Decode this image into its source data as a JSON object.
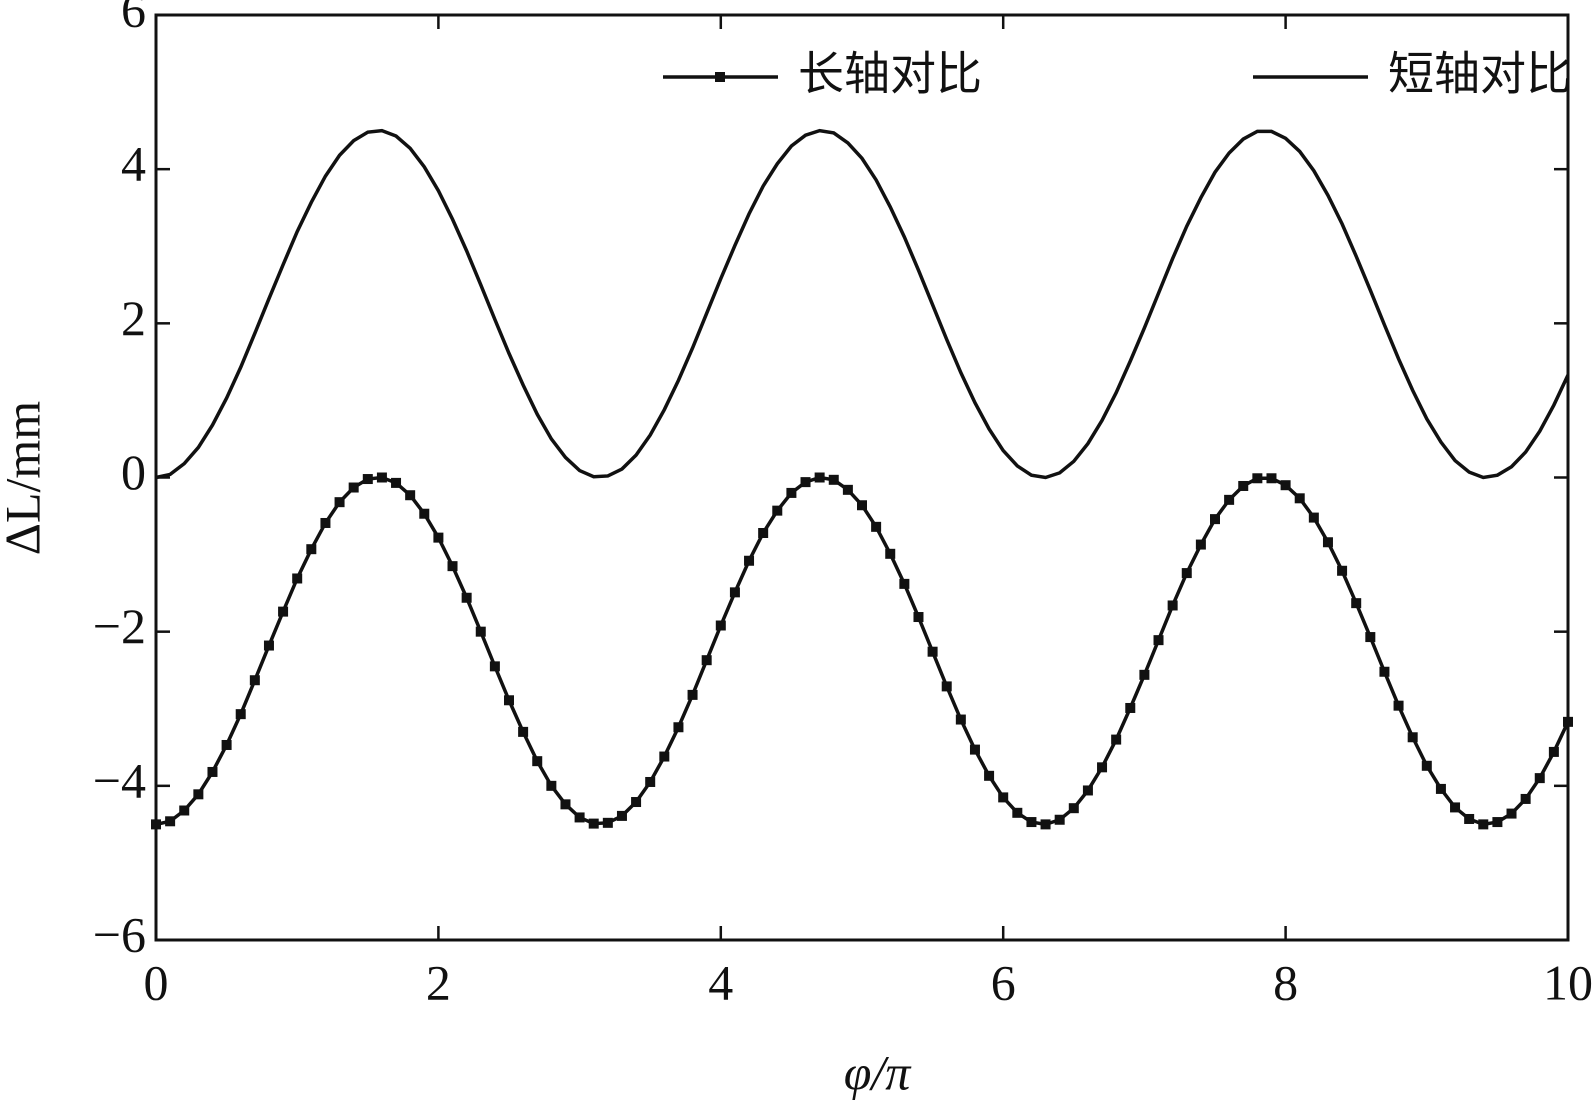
{
  "chart_data": {
    "type": "line",
    "xlabel": "φ/π",
    "ylabel": "ΔL/mm",
    "x": [
      0,
      0.1,
      0.2,
      0.3,
      0.4,
      0.5,
      0.6,
      0.7,
      0.8,
      0.9,
      1,
      1.1,
      1.2,
      1.3,
      1.4,
      1.5,
      1.6,
      1.7,
      1.8,
      1.9,
      2,
      2.1,
      2.2,
      2.3,
      2.4,
      2.5,
      2.6,
      2.7,
      2.8,
      2.9,
      3,
      3.1,
      3.2,
      3.3,
      3.4,
      3.5,
      3.6,
      3.7,
      3.8,
      3.9,
      4,
      4.1,
      4.2,
      4.3,
      4.4,
      4.5,
      4.6,
      4.7,
      4.8,
      4.9,
      5,
      5.1,
      5.2,
      5.3,
      5.4,
      5.5,
      5.6,
      5.7,
      5.8,
      5.9,
      6,
      6.1,
      6.2,
      6.3,
      6.4,
      6.5,
      6.6,
      6.7,
      6.8,
      6.9,
      7,
      7.1,
      7.2,
      7.3,
      7.4,
      7.5,
      7.6,
      7.7,
      7.8,
      7.9,
      8,
      8.1,
      8.2,
      8.3,
      8.4,
      8.5,
      8.6,
      8.7,
      8.8,
      8.9,
      9,
      9.1,
      9.2,
      9.3,
      9.4,
      9.5,
      9.6,
      9.7,
      9.8,
      9.9,
      10
    ],
    "series": [
      {
        "name": "长轴对比",
        "color": "#111111",
        "marker": "square",
        "values": [
          -4.5,
          -4.46,
          -4.32,
          -4.11,
          -3.82,
          -3.47,
          -3.07,
          -2.63,
          -2.18,
          -1.74,
          -1.31,
          -0.93,
          -0.59,
          -0.32,
          -0.13,
          -0.02,
          0,
          -0.07,
          -0.23,
          -0.47,
          -0.78,
          -1.15,
          -1.56,
          -2,
          -2.45,
          -2.89,
          -3.3,
          -3.68,
          -4,
          -4.24,
          -4.41,
          -4.49,
          -4.48,
          -4.39,
          -4.21,
          -3.95,
          -3.62,
          -3.24,
          -2.82,
          -2.37,
          -1.92,
          -1.49,
          -1.08,
          -0.72,
          -0.43,
          -0.2,
          -0.06,
          0,
          -0.03,
          -0.16,
          -0.36,
          -0.64,
          -0.99,
          -1.38,
          -1.81,
          -2.26,
          -2.71,
          -3.14,
          -3.53,
          -3.87,
          -4.15,
          -4.35,
          -4.47,
          -4.5,
          -4.44,
          -4.29,
          -4.06,
          -3.76,
          -3.4,
          -2.99,
          -2.56,
          -2.11,
          -1.66,
          -1.24,
          -0.87,
          -0.54,
          -0.29,
          -0.11,
          -0.01,
          -0.01,
          -0.1,
          -0.27,
          -0.52,
          -0.84,
          -1.21,
          -1.63,
          -2.07,
          -2.52,
          -2.96,
          -3.37,
          -3.74,
          -4.04,
          -4.28,
          -4.43,
          -4.5,
          -4.47,
          -4.36,
          -4.17,
          -3.9,
          -3.56,
          -3.17
        ]
      },
      {
        "name": "短轴对比",
        "color": "#111111",
        "values": [
          0,
          0.04,
          0.18,
          0.39,
          0.68,
          1.03,
          1.43,
          1.87,
          2.32,
          2.76,
          3.19,
          3.57,
          3.91,
          4.18,
          4.37,
          4.48,
          4.5,
          4.43,
          4.27,
          4.03,
          3.72,
          3.35,
          2.94,
          2.5,
          2.05,
          1.61,
          1.2,
          0.82,
          0.5,
          0.26,
          0.09,
          0.01,
          0.02,
          0.11,
          0.29,
          0.55,
          0.88,
          1.26,
          1.68,
          2.13,
          2.58,
          3.01,
          3.42,
          3.78,
          4.07,
          4.3,
          4.44,
          4.5,
          4.47,
          4.34,
          4.14,
          3.86,
          3.51,
          3.12,
          2.69,
          2.24,
          1.79,
          1.36,
          0.97,
          0.63,
          0.35,
          0.15,
          0.03,
          0,
          0.06,
          0.21,
          0.44,
          0.74,
          1.1,
          1.51,
          1.94,
          2.39,
          2.84,
          3.26,
          3.63,
          3.96,
          4.21,
          4.39,
          4.49,
          4.49,
          4.4,
          4.23,
          3.98,
          3.66,
          3.29,
          2.87,
          2.43,
          1.98,
          1.54,
          1.13,
          0.76,
          0.46,
          0.22,
          0.07,
          0,
          0.03,
          0.14,
          0.33,
          0.6,
          0.94,
          1.33
        ]
      }
    ],
    "xlim": [
      0,
      10
    ],
    "xticks": [
      0,
      2,
      4,
      6,
      8,
      10
    ],
    "ylim": [
      -6,
      6
    ],
    "yticks": [
      {
        "value": -6,
        "label": "−6"
      },
      {
        "value": -4,
        "label": "−4"
      },
      {
        "value": -2,
        "label": "−2"
      },
      0,
      2,
      4,
      6
    ],
    "legend": "top-right",
    "grid": false
  }
}
